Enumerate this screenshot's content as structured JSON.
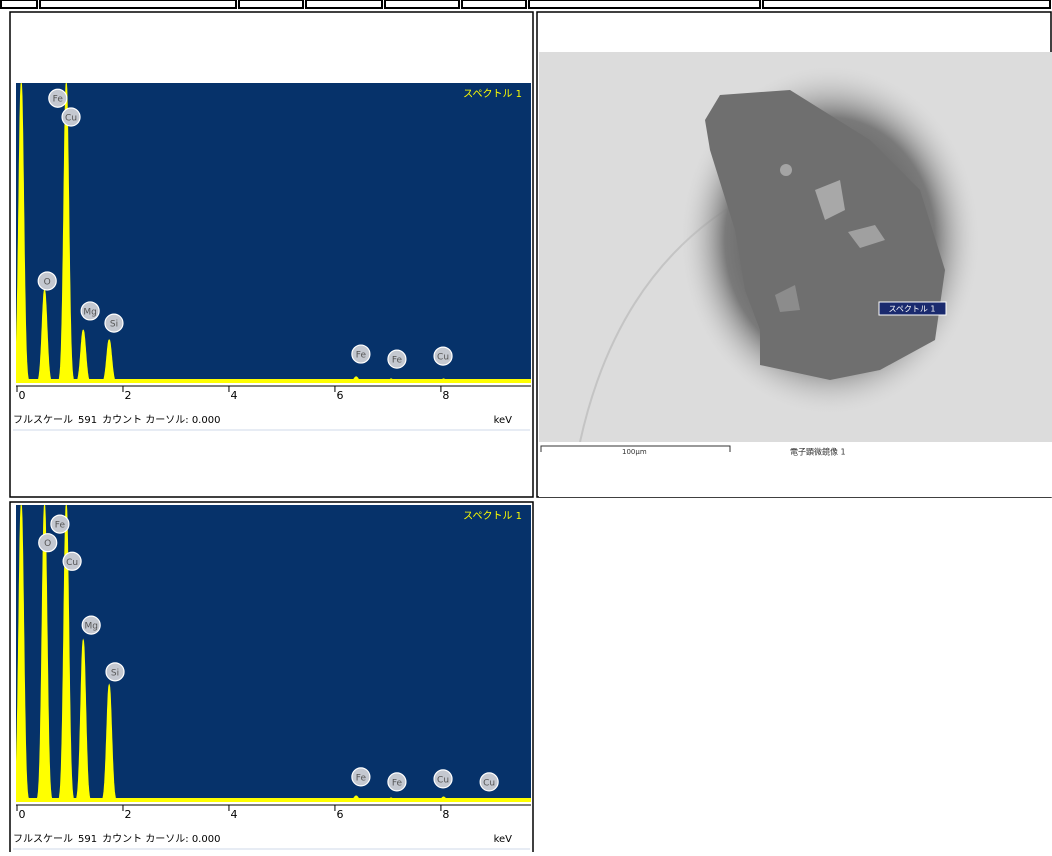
{
  "spectra": [
    {
      "title": "スペクトル 1",
      "xlim": [
        0,
        9.7
      ],
      "xticks": [
        0,
        2,
        4,
        6,
        8
      ],
      "unit": "keV",
      "footer_prefix": "フルスケール",
      "full_scale": 591,
      "footer_suffix": "カウント カーソル: 0.000",
      "peaks": [
        {
          "x": 0.08,
          "counts": 591
        },
        {
          "x": 0.52,
          "counts": 183
        },
        {
          "x": 0.93,
          "counts": 591
        },
        {
          "x": 1.25,
          "counts": 104
        },
        {
          "x": 1.74,
          "counts": 85
        },
        {
          "x": 6.4,
          "counts": 12
        },
        {
          "x": 7.06,
          "counts": 8
        },
        {
          "x": 8.05,
          "counts": 8
        }
      ],
      "labels": [
        {
          "text": "Fe",
          "x": 0.77,
          "counts": 561
        },
        {
          "text": "Cu",
          "x": 1.02,
          "counts": 524
        },
        {
          "text": "O",
          "x": 0.57,
          "counts": 201
        },
        {
          "text": "Mg",
          "x": 1.38,
          "counts": 142
        },
        {
          "text": "Si",
          "x": 1.83,
          "counts": 118
        },
        {
          "text": "Fe",
          "x": 6.49,
          "counts": 57
        },
        {
          "text": "Fe",
          "x": 7.17,
          "counts": 47
        },
        {
          "text": "Cu",
          "x": 8.04,
          "counts": 53
        }
      ]
    },
    {
      "title": "スペクトル 1",
      "xlim": [
        0,
        9.7
      ],
      "xticks": [
        0,
        2,
        4,
        6,
        8
      ],
      "unit": "keV",
      "footer_prefix": "フルスケール",
      "full_scale": 591,
      "footer_suffix": "カウント カーソル: 0.000",
      "peaks": [
        {
          "x": 0.08,
          "counts": 591
        },
        {
          "x": 0.52,
          "counts": 591
        },
        {
          "x": 0.93,
          "counts": 591
        },
        {
          "x": 1.25,
          "counts": 322
        },
        {
          "x": 1.74,
          "counts": 233
        },
        {
          "x": 6.4,
          "counts": 12
        },
        {
          "x": 7.06,
          "counts": 8
        },
        {
          "x": 8.05,
          "counts": 10
        },
        {
          "x": 8.9,
          "counts": 6
        }
      ],
      "labels": [
        {
          "text": "Fe",
          "x": 0.81,
          "counts": 553
        },
        {
          "text": "O",
          "x": 0.58,
          "counts": 516
        },
        {
          "text": "Cu",
          "x": 1.04,
          "counts": 479
        },
        {
          "text": "Mg",
          "x": 1.4,
          "counts": 352
        },
        {
          "text": "Si",
          "x": 1.85,
          "counts": 259
        },
        {
          "text": "Fe",
          "x": 6.49,
          "counts": 50
        },
        {
          "text": "Fe",
          "x": 7.17,
          "counts": 40
        },
        {
          "text": "Cu",
          "x": 8.04,
          "counts": 46
        },
        {
          "text": "Cu",
          "x": 8.91,
          "counts": 40
        }
      ]
    }
  ],
  "image": {
    "spot_label": "スペクトル 1",
    "scale": "100μm",
    "caption": "電子顕微鏡像 1"
  }
}
